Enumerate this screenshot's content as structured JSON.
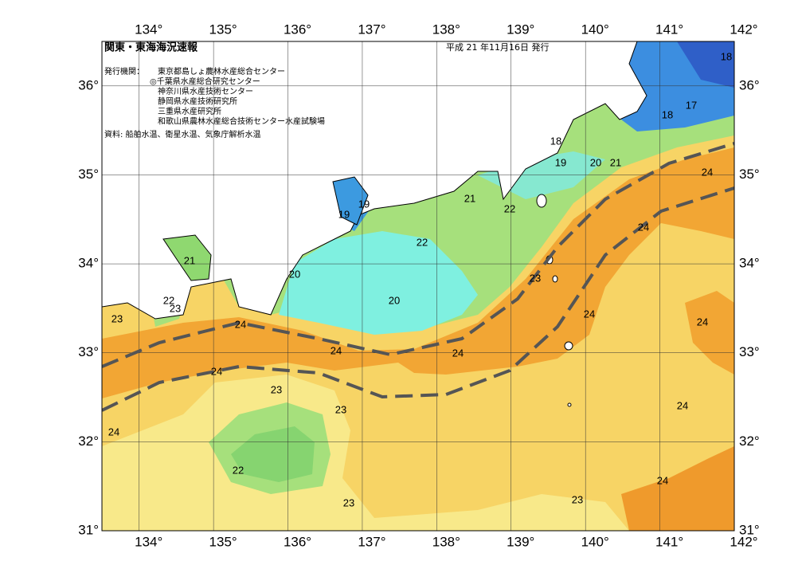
{
  "header": {
    "title": "関東・東海海況速報",
    "date": "平成 21 年11月16日 発行",
    "issuer_heading": "発行機関：",
    "issuers": [
      "東京都島しょ農林水産総合センター",
      "◎千葉県水産総合研究センター",
      "神奈川県水産技術センター",
      "静岡県水産技術研究所",
      "三重県水産研究所",
      "和歌山県農林水産総合技術センター水産試験場"
    ],
    "sources": "資料: 船舶水温、衛星水温、気象庁解析水温"
  },
  "map": {
    "lon_ticks": [
      {
        "value": 134,
        "label": "134°"
      },
      {
        "value": 135,
        "label": "135°"
      },
      {
        "value": 136,
        "label": "136°"
      },
      {
        "value": 137,
        "label": "137°"
      },
      {
        "value": 138,
        "label": "138°"
      },
      {
        "value": 139,
        "label": "139°"
      },
      {
        "value": 140,
        "label": "140°"
      },
      {
        "value": 141,
        "label": "141°"
      },
      {
        "value": 142,
        "label": "142°"
      }
    ],
    "lat_ticks": [
      {
        "value": 31,
        "label": "31°"
      },
      {
        "value": 32,
        "label": "32°"
      },
      {
        "value": 33,
        "label": "33°"
      },
      {
        "value": 34,
        "label": "34°"
      },
      {
        "value": 35,
        "label": "35°"
      },
      {
        "value": 36,
        "label": "36°"
      }
    ],
    "contour_labels": [
      "18",
      "17",
      "18",
      "18",
      "19",
      "20",
      "21",
      "19",
      "19",
      "21",
      "22",
      "22",
      "21",
      "20",
      "22",
      "23",
      "23",
      "24",
      "20",
      "23",
      "24",
      "24",
      "24",
      "24",
      "24",
      "24",
      "24",
      "23",
      "23",
      "24",
      "22",
      "24",
      "24",
      "23",
      "23"
    ]
  }
}
